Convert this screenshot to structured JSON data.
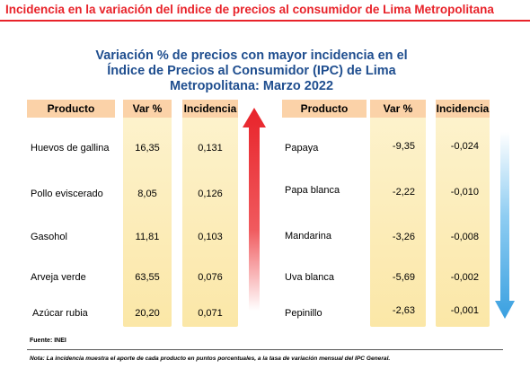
{
  "document": {
    "title": "Incidencia en la variación del índice de precios al consumidor de Lima Metropolitana",
    "chart_title_lines": [
      "Variación % de precios con mayor incidencia en el",
      "Índice de Precios al Consumidor (IPC) de Lima",
      "Metropolitana: Marzo 2022"
    ],
    "source": "Fuente: INEI",
    "note": "Nota: La incidencia muestra el aporte de cada producto en puntos porcentuales, a la tasa de variación mensual del IPC General."
  },
  "chart_data": {
    "type": "table",
    "title": "Variación % de precios con mayor incidencia en el Índice de Precios al Consumidor (IPC) de Lima Metropolitana: Marzo 2022",
    "columns": [
      "Producto",
      "Var %",
      "Incidencia"
    ],
    "tables": [
      {
        "rows": [
          {
            "producto": "Huevos de gallina",
            "var": "16,35",
            "incidencia": "0,131"
          },
          {
            "producto": "Pollo eviscerado",
            "var": "8,05",
            "incidencia": "0,126"
          },
          {
            "producto": "Gasohol",
            "var": "11,81",
            "incidencia": "0,103"
          },
          {
            "producto": "Arveja verde",
            "var": "63,55",
            "incidencia": "0,076"
          },
          {
            "producto": "Azúcar rubia",
            "var": "20,20",
            "incidencia": "0,071"
          }
        ]
      },
      {
        "rows": [
          {
            "producto": "Papaya",
            "var": "-9,35",
            "incidencia": "-0,024"
          },
          {
            "producto": "Papa blanca",
            "var": "-2,22",
            "incidencia": "-0,010"
          },
          {
            "producto": "Mandarina",
            "var": "-3,26",
            "incidencia": "-0,008"
          },
          {
            "producto": "Uva blanca",
            "var": "-5,69",
            "incidencia": "-0,002"
          },
          {
            "producto": "Pepinillo",
            "var": "-2,63",
            "incidencia": "-0,001"
          }
        ]
      }
    ]
  },
  "colors": {
    "title_red": "#e8232a",
    "chart_title_blue": "#1f4e8f",
    "header_orange": "#fbd2a8",
    "column_yellow": "#fbe7a7",
    "arrow_up_red": "#e8232a",
    "arrow_down_blue": "#3aa0e0"
  },
  "icons": {
    "left_arrow": "red-up-arrow",
    "right_arrow": "blue-down-arrow"
  }
}
